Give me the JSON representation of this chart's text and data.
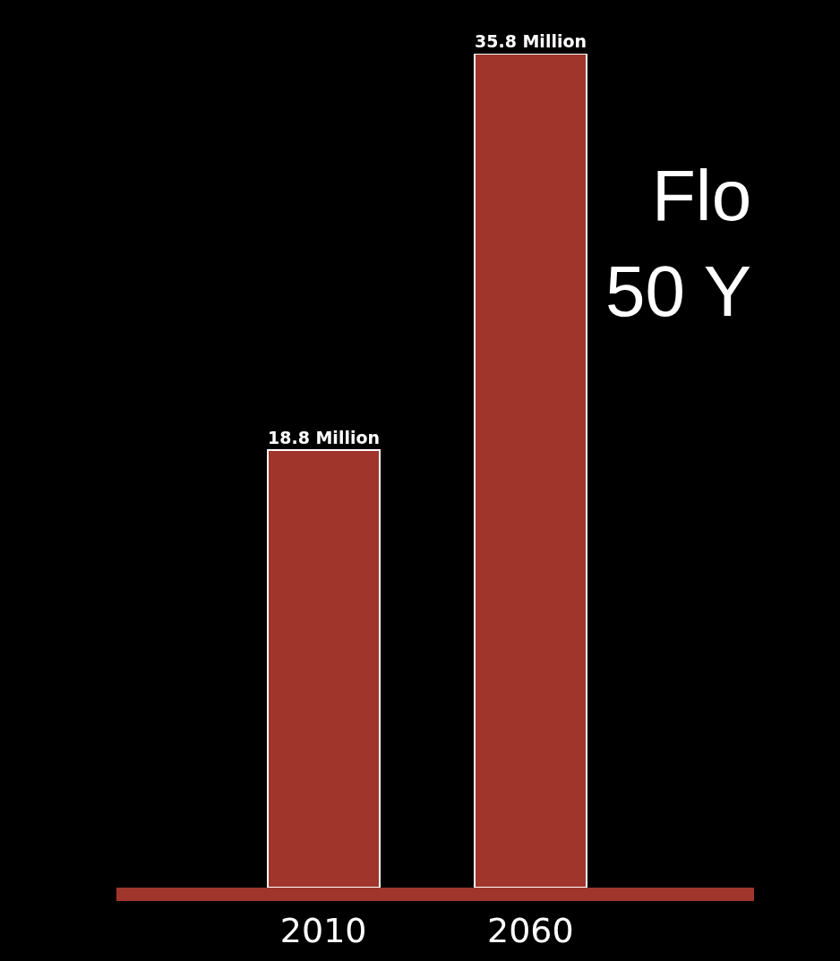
{
  "chart_data": {
    "type": "bar",
    "categories": [
      "2010",
      "2060"
    ],
    "values": [
      18.8,
      35.8
    ],
    "value_labels": [
      "18.8 Million",
      "35.8 Million"
    ],
    "color": "#a0362b",
    "annotations": [
      "Flo",
      "50 Y"
    ],
    "grid": false,
    "legend": false
  }
}
